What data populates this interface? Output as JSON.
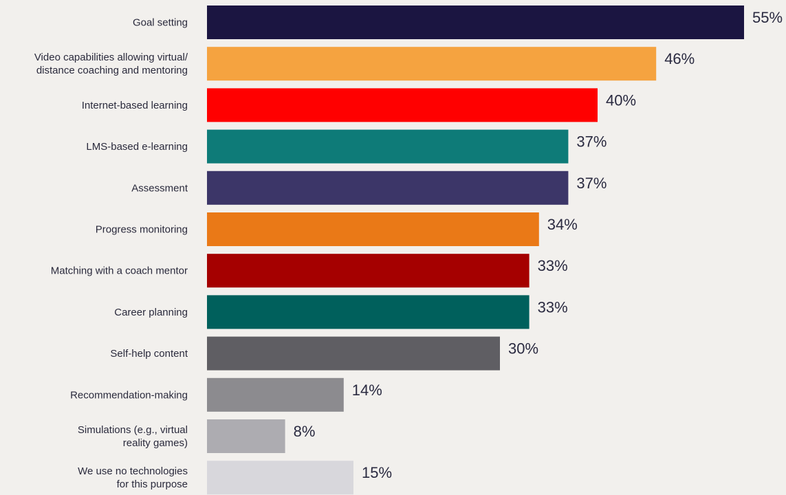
{
  "chart_data": {
    "type": "bar",
    "orientation": "horizontal",
    "title": "",
    "xlabel": "",
    "ylabel": "",
    "xlim": [
      0,
      55
    ],
    "grid": false,
    "categories": [
      [
        "Goal setting"
      ],
      [
        "Video capabilities allowing virtual/",
        "distance coaching and mentoring"
      ],
      [
        "Internet-based learning"
      ],
      [
        "LMS-based e-learning"
      ],
      [
        "Assessment"
      ],
      [
        "Progress monitoring"
      ],
      [
        "Matching with a coach mentor"
      ],
      [
        "Career planning"
      ],
      [
        "Self-help content"
      ],
      [
        "Recommendation-making"
      ],
      [
        "Simulations (e.g., virtual",
        "reality games)"
      ],
      [
        "We use no technologies",
        "for this purpose"
      ]
    ],
    "values": [
      55,
      46,
      40,
      37,
      37,
      34,
      33,
      33,
      30,
      14,
      8,
      15
    ],
    "value_labels": [
      "55%",
      "46%",
      "40%",
      "37%",
      "37%",
      "34%",
      "33%",
      "33%",
      "30%",
      "14%",
      "8%",
      "15%"
    ],
    "colors": [
      "#1b1541",
      "#f5a340",
      "#ff0000",
      "#0e7b78",
      "#3c3668",
      "#ea7917",
      "#a50000",
      "#00605c",
      "#5f5e63",
      "#8c8b8f",
      "#adacb1",
      "#d8d7dc"
    ]
  }
}
